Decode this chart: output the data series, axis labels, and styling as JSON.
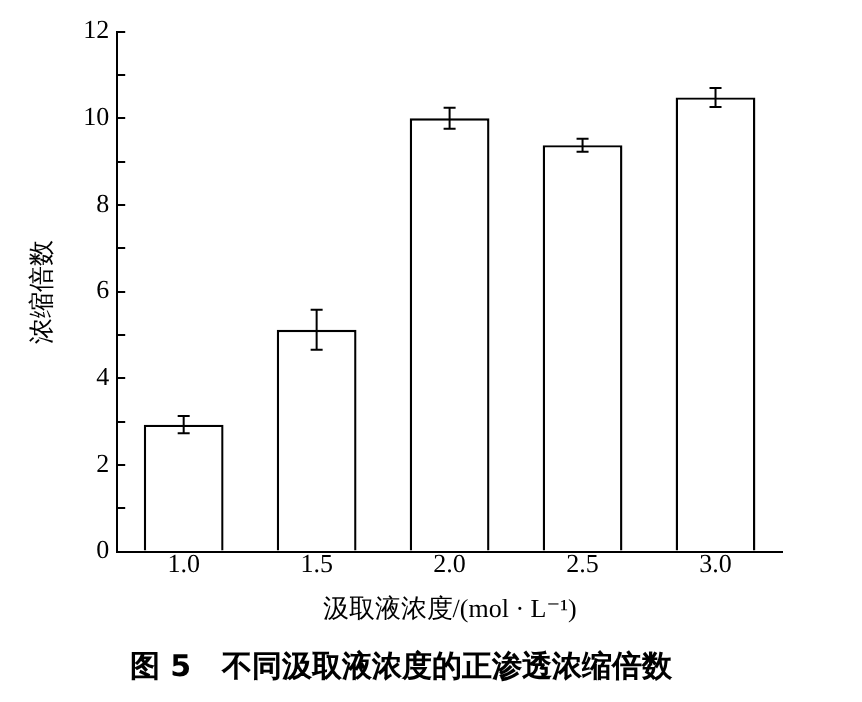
{
  "chart_data": {
    "type": "bar",
    "title": "图 5   不同汲取液浓度的正渗透浓缩倍数",
    "xlabel": "汲取液浓度/(mol · L⁻¹)",
    "ylabel": "浓缩倍数",
    "categories": [
      "1.0",
      "1.5",
      "2.0",
      "2.5",
      "3.0"
    ],
    "values": [
      2.93,
      5.12,
      10.0,
      9.38,
      10.48
    ],
    "errors": [
      0.2,
      0.46,
      0.24,
      0.15,
      0.22
    ],
    "color": "#ffffff",
    "ylim": [
      0,
      12
    ],
    "yticks": [
      0,
      {
        "value": 1,
        "label": null
      },
      2,
      {
        "value": 3,
        "label": null
      },
      4,
      {
        "value": 5,
        "label": null
      },
      6,
      {
        "value": 7,
        "label": null
      },
      8,
      {
        "value": 9,
        "label": null
      },
      10,
      {
        "value": 11,
        "label": null
      },
      12
    ],
    "grid": false,
    "legend": false
  }
}
